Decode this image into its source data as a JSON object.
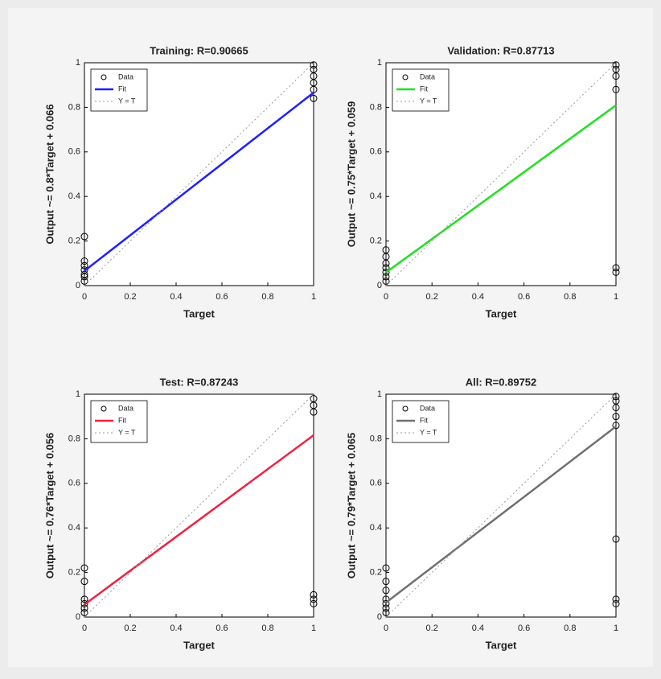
{
  "chart_data": [
    {
      "type": "scatter",
      "title": "Training: R=0.90665",
      "xlabel": "Target",
      "ylabel": "Output ~= 0.8*Target + 0.066",
      "xlim": [
        0,
        1
      ],
      "ylim": [
        0,
        1
      ],
      "xticks": [
        0,
        0.2,
        0.4,
        0.6,
        0.8,
        1
      ],
      "yticks": [
        0,
        0.2,
        0.4,
        0.6,
        0.8,
        1
      ],
      "legend": "upper left",
      "series": [
        {
          "name": "Data",
          "color": "#000000",
          "mode": "markers",
          "x": [
            0,
            0,
            0,
            0,
            0,
            0,
            0,
            1,
            1,
            1,
            1,
            1,
            1
          ],
          "values": [
            0.02,
            0.04,
            0.05,
            0.07,
            0.09,
            0.11,
            0.22,
            0.84,
            0.88,
            0.91,
            0.94,
            0.97,
            0.99
          ]
        },
        {
          "name": "Fit",
          "color": "#2020ff",
          "mode": "line",
          "x": [
            0,
            1
          ],
          "values": [
            0.066,
            0.866
          ]
        },
        {
          "name": "Y = T",
          "color": "#999999",
          "mode": "dotted",
          "x": [
            0,
            1
          ],
          "values": [
            0,
            1
          ]
        }
      ]
    },
    {
      "type": "scatter",
      "title": "Validation: R=0.87713",
      "xlabel": "Target",
      "ylabel": "Output ~= 0.75*Target + 0.059",
      "xlim": [
        0,
        1
      ],
      "ylim": [
        0,
        1
      ],
      "xticks": [
        0,
        0.2,
        0.4,
        0.6,
        0.8,
        1
      ],
      "yticks": [
        0,
        0.2,
        0.4,
        0.6,
        0.8,
        1
      ],
      "legend": "upper left",
      "series": [
        {
          "name": "Data",
          "color": "#000000",
          "mode": "markers",
          "x": [
            0,
            0,
            0,
            0,
            0,
            0,
            0,
            1,
            1,
            1,
            1,
            1,
            1
          ],
          "values": [
            0.02,
            0.04,
            0.06,
            0.08,
            0.1,
            0.13,
            0.16,
            0.06,
            0.08,
            0.88,
            0.94,
            0.97,
            0.99
          ]
        },
        {
          "name": "Fit",
          "color": "#20e020",
          "mode": "line",
          "x": [
            0,
            1
          ],
          "values": [
            0.059,
            0.809
          ]
        },
        {
          "name": "Y = T",
          "color": "#999999",
          "mode": "dotted",
          "x": [
            0,
            1
          ],
          "values": [
            0,
            1
          ]
        }
      ]
    },
    {
      "type": "scatter",
      "title": "Test: R=0.87243",
      "xlabel": "Target",
      "ylabel": "Output ~= 0.76*Target + 0.056",
      "xlim": [
        0,
        1
      ],
      "ylim": [
        0,
        1
      ],
      "xticks": [
        0,
        0.2,
        0.4,
        0.6,
        0.8,
        1
      ],
      "yticks": [
        0,
        0.2,
        0.4,
        0.6,
        0.8,
        1
      ],
      "legend": "upper left",
      "series": [
        {
          "name": "Data",
          "color": "#000000",
          "mode": "markers",
          "x": [
            0,
            0,
            0,
            0,
            0,
            0,
            1,
            1,
            1,
            1,
            1,
            1
          ],
          "values": [
            0.02,
            0.04,
            0.06,
            0.08,
            0.16,
            0.22,
            0.06,
            0.08,
            0.1,
            0.92,
            0.95,
            0.98
          ]
        },
        {
          "name": "Fit",
          "color": "#f02040",
          "mode": "line",
          "x": [
            0,
            1
          ],
          "values": [
            0.056,
            0.816
          ]
        },
        {
          "name": "Y = T",
          "color": "#999999",
          "mode": "dotted",
          "x": [
            0,
            1
          ],
          "values": [
            0,
            1
          ]
        }
      ]
    },
    {
      "type": "scatter",
      "title": "All: R=0.89752",
      "xlabel": "Target",
      "ylabel": "Output ~= 0.79*Target + 0.065",
      "xlim": [
        0,
        1
      ],
      "ylim": [
        0,
        1
      ],
      "xticks": [
        0,
        0.2,
        0.4,
        0.6,
        0.8,
        1
      ],
      "yticks": [
        0,
        0.2,
        0.4,
        0.6,
        0.8,
        1
      ],
      "legend": "upper left",
      "series": [
        {
          "name": "Data",
          "color": "#000000",
          "mode": "markers",
          "x": [
            0,
            0,
            0,
            0,
            0,
            0,
            0,
            1,
            1,
            1,
            1,
            1,
            1,
            1,
            1
          ],
          "values": [
            0.02,
            0.04,
            0.06,
            0.08,
            0.12,
            0.16,
            0.22,
            0.06,
            0.08,
            0.35,
            0.86,
            0.9,
            0.94,
            0.97,
            0.99
          ]
        },
        {
          "name": "Fit",
          "color": "#707070",
          "mode": "line",
          "x": [
            0,
            1
          ],
          "values": [
            0.065,
            0.855
          ]
        },
        {
          "name": "Y = T",
          "color": "#999999",
          "mode": "dotted",
          "x": [
            0,
            1
          ],
          "values": [
            0,
            1
          ]
        }
      ]
    }
  ]
}
